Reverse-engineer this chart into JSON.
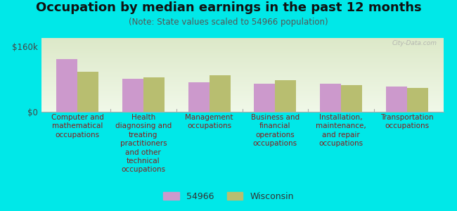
{
  "title": "Occupation by median earnings in the past 12 months",
  "subtitle": "(Note: State values scaled to 54966 population)",
  "background_color": "#00e8e8",
  "plot_bg_top": "#dce8c8",
  "plot_bg_bottom": "#f0f8e8",
  "ylabel_tick": "$160k",
  "y_tick_value": 160000,
  "y_zero_label": "$0",
  "categories": [
    "Computer and\nmathematical\noccupations",
    "Health\ndiagnosing and\ntreating\npractitioners\nand other\ntechnical\noccupations",
    "Management\noccupations",
    "Business and\nfinancial\noperations\noccupations",
    "Installation,\nmaintenance,\nand repair\noccupations",
    "Transportation\noccupations"
  ],
  "values_54966": [
    128000,
    80000,
    72000,
    68000,
    68000,
    62000
  ],
  "values_wisconsin": [
    98000,
    84000,
    90000,
    78000,
    66000,
    58000
  ],
  "color_54966": "#cc99cc",
  "color_wisconsin": "#b8be70",
  "legend_54966": "54966",
  "legend_wisconsin": "Wisconsin",
  "watermark": "City-Data.com",
  "ylim": [
    0,
    180000
  ],
  "title_fontsize": 13,
  "subtitle_fontsize": 8.5,
  "label_fontsize": 7.5,
  "tick_fontsize": 8.5,
  "legend_fontsize": 9
}
